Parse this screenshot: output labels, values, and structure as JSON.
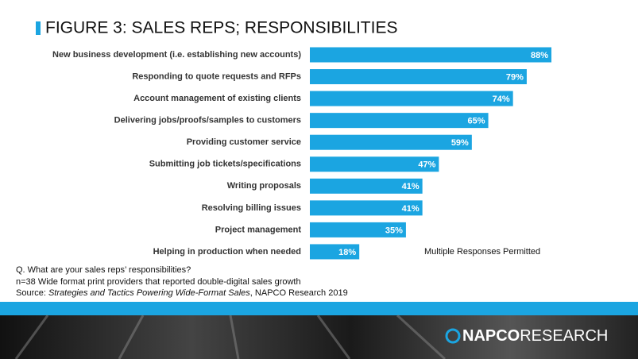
{
  "chart_data": {
    "type": "bar",
    "orientation": "horizontal",
    "title": "FIGURE 3: SALES REPS; RESPONSIBILITIES",
    "categories": [
      "New business development (i.e. establishing new accounts)",
      "Responding to quote requests and RFPs",
      "Account management of existing clients",
      "Delivering jobs/proofs/samples to customers",
      "Providing customer service",
      "Submitting job tickets/specifications",
      "Writing proposals",
      "Resolving billing issues",
      "Project management",
      "Helping in production when needed"
    ],
    "values": [
      88,
      79,
      74,
      65,
      59,
      47,
      41,
      41,
      35,
      18
    ],
    "value_labels": [
      "88%",
      "79%",
      "74%",
      "65%",
      "59%",
      "47%",
      "41%",
      "41%",
      "35%",
      "18%"
    ],
    "color": "#1ba5e1",
    "annotation": "Multiple Responses Permitted",
    "notes": [
      "Q. What are your sales reps’ responsibilities?",
      "n=38 Wide format print providers that reported double-digital sales growth"
    ],
    "source": {
      "prefix": "Source: ",
      "title": "Strategies and Tactics Powering Wide-Format Sales",
      "suffix": ", NAPCO Research 2019"
    }
  },
  "logo": {
    "brand": "NAPCO",
    "suffix": "RESEARCH"
  }
}
